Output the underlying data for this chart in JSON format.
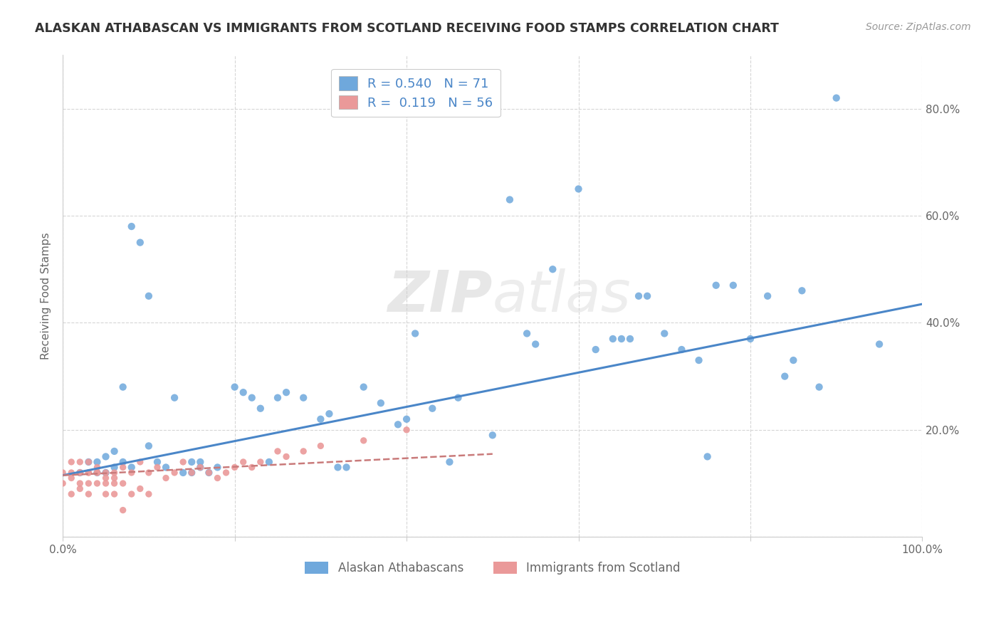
{
  "title": "ALASKAN ATHABASCAN VS IMMIGRANTS FROM SCOTLAND RECEIVING FOOD STAMPS CORRELATION CHART",
  "source": "Source: ZipAtlas.com",
  "ylabel": "Receiving Food Stamps",
  "xlim": [
    0.0,
    1.0
  ],
  "ylim": [
    0.0,
    0.9
  ],
  "xticks": [
    0.0,
    0.2,
    0.4,
    0.6,
    0.8,
    1.0
  ],
  "xticklabels": [
    "0.0%",
    "",
    "",
    "",
    "",
    "100.0%"
  ],
  "yticks": [
    0.0,
    0.2,
    0.4,
    0.6,
    0.8
  ],
  "yticklabels_right": [
    "",
    "20.0%",
    "40.0%",
    "60.0%",
    "80.0%"
  ],
  "blue_color": "#6fa8dc",
  "pink_color": "#ea9999",
  "blue_line_color": "#4a86c8",
  "pink_line_color": "#c97a7a",
  "R_blue": 0.54,
  "N_blue": 71,
  "R_pink": 0.119,
  "N_pink": 56,
  "legend1_label": "Alaskan Athabascans",
  "legend2_label": "Immigrants from Scotland",
  "blue_scatter": [
    [
      0.02,
      0.12
    ],
    [
      0.03,
      0.14
    ],
    [
      0.04,
      0.12
    ],
    [
      0.04,
      0.14
    ],
    [
      0.05,
      0.12
    ],
    [
      0.05,
      0.15
    ],
    [
      0.06,
      0.13
    ],
    [
      0.06,
      0.16
    ],
    [
      0.07,
      0.14
    ],
    [
      0.07,
      0.28
    ],
    [
      0.08,
      0.13
    ],
    [
      0.08,
      0.58
    ],
    [
      0.09,
      0.55
    ],
    [
      0.1,
      0.45
    ],
    [
      0.1,
      0.17
    ],
    [
      0.11,
      0.14
    ],
    [
      0.12,
      0.13
    ],
    [
      0.13,
      0.26
    ],
    [
      0.14,
      0.12
    ],
    [
      0.15,
      0.12
    ],
    [
      0.15,
      0.14
    ],
    [
      0.16,
      0.13
    ],
    [
      0.16,
      0.14
    ],
    [
      0.17,
      0.12
    ],
    [
      0.18,
      0.13
    ],
    [
      0.2,
      0.28
    ],
    [
      0.21,
      0.27
    ],
    [
      0.22,
      0.26
    ],
    [
      0.23,
      0.24
    ],
    [
      0.24,
      0.14
    ],
    [
      0.25,
      0.26
    ],
    [
      0.26,
      0.27
    ],
    [
      0.28,
      0.26
    ],
    [
      0.3,
      0.22
    ],
    [
      0.31,
      0.23
    ],
    [
      0.32,
      0.13
    ],
    [
      0.33,
      0.13
    ],
    [
      0.35,
      0.28
    ],
    [
      0.37,
      0.25
    ],
    [
      0.39,
      0.21
    ],
    [
      0.4,
      0.22
    ],
    [
      0.41,
      0.38
    ],
    [
      0.43,
      0.24
    ],
    [
      0.45,
      0.14
    ],
    [
      0.46,
      0.26
    ],
    [
      0.5,
      0.19
    ],
    [
      0.52,
      0.63
    ],
    [
      0.54,
      0.38
    ],
    [
      0.55,
      0.36
    ],
    [
      0.57,
      0.5
    ],
    [
      0.6,
      0.65
    ],
    [
      0.62,
      0.35
    ],
    [
      0.64,
      0.37
    ],
    [
      0.65,
      0.37
    ],
    [
      0.66,
      0.37
    ],
    [
      0.67,
      0.45
    ],
    [
      0.68,
      0.45
    ],
    [
      0.7,
      0.38
    ],
    [
      0.72,
      0.35
    ],
    [
      0.74,
      0.33
    ],
    [
      0.75,
      0.15
    ],
    [
      0.76,
      0.47
    ],
    [
      0.78,
      0.47
    ],
    [
      0.8,
      0.37
    ],
    [
      0.82,
      0.45
    ],
    [
      0.84,
      0.3
    ],
    [
      0.85,
      0.33
    ],
    [
      0.86,
      0.46
    ],
    [
      0.88,
      0.28
    ],
    [
      0.9,
      0.82
    ],
    [
      0.95,
      0.36
    ]
  ],
  "pink_scatter": [
    [
      0.0,
      0.12
    ],
    [
      0.0,
      0.1
    ],
    [
      0.01,
      0.12
    ],
    [
      0.01,
      0.14
    ],
    [
      0.01,
      0.11
    ],
    [
      0.01,
      0.08
    ],
    [
      0.02,
      0.12
    ],
    [
      0.02,
      0.1
    ],
    [
      0.02,
      0.14
    ],
    [
      0.02,
      0.12
    ],
    [
      0.02,
      0.09
    ],
    [
      0.03,
      0.12
    ],
    [
      0.03,
      0.1
    ],
    [
      0.03,
      0.12
    ],
    [
      0.03,
      0.14
    ],
    [
      0.03,
      0.08
    ],
    [
      0.04,
      0.12
    ],
    [
      0.04,
      0.12
    ],
    [
      0.04,
      0.1
    ],
    [
      0.04,
      0.13
    ],
    [
      0.05,
      0.12
    ],
    [
      0.05,
      0.11
    ],
    [
      0.05,
      0.1
    ],
    [
      0.05,
      0.08
    ],
    [
      0.06,
      0.12
    ],
    [
      0.06,
      0.11
    ],
    [
      0.06,
      0.1
    ],
    [
      0.06,
      0.08
    ],
    [
      0.07,
      0.13
    ],
    [
      0.07,
      0.1
    ],
    [
      0.08,
      0.12
    ],
    [
      0.08,
      0.08
    ],
    [
      0.09,
      0.14
    ],
    [
      0.09,
      0.09
    ],
    [
      0.1,
      0.12
    ],
    [
      0.1,
      0.08
    ],
    [
      0.11,
      0.13
    ],
    [
      0.12,
      0.11
    ],
    [
      0.13,
      0.12
    ],
    [
      0.14,
      0.14
    ],
    [
      0.15,
      0.12
    ],
    [
      0.16,
      0.13
    ],
    [
      0.17,
      0.12
    ],
    [
      0.18,
      0.11
    ],
    [
      0.19,
      0.12
    ],
    [
      0.2,
      0.13
    ],
    [
      0.21,
      0.14
    ],
    [
      0.22,
      0.13
    ],
    [
      0.23,
      0.14
    ],
    [
      0.25,
      0.16
    ],
    [
      0.26,
      0.15
    ],
    [
      0.28,
      0.16
    ],
    [
      0.3,
      0.17
    ],
    [
      0.35,
      0.18
    ],
    [
      0.4,
      0.2
    ],
    [
      0.07,
      0.05
    ]
  ],
  "blue_line_x": [
    0.0,
    1.0
  ],
  "blue_line_y": [
    0.115,
    0.435
  ],
  "pink_line_x": [
    0.0,
    0.5
  ],
  "pink_line_y": [
    0.115,
    0.155
  ],
  "background_color": "#ffffff",
  "grid_color": "#cccccc",
  "title_color": "#333333",
  "tick_color": "#666666",
  "legend_text_color": "#4a86c8"
}
